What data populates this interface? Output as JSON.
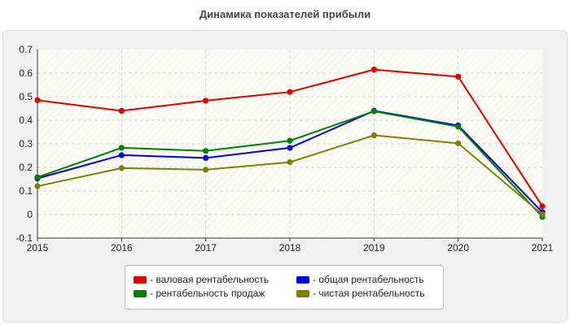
{
  "chart_data": {
    "type": "line",
    "title": "Динамика показателей прибыли",
    "x": [
      "2015",
      "2016",
      "2017",
      "2018",
      "2019",
      "2020",
      "2021"
    ],
    "ylim": [
      -0.1,
      0.7
    ],
    "yticks": [
      "-0.1",
      "0",
      "0.1",
      "0.2",
      "0.3",
      "0.4",
      "0.5",
      "0.6",
      "0.7"
    ],
    "grid": true,
    "legend_position": "bottom",
    "series": [
      {
        "name": "- валовая рентабельность",
        "color": "#e00000",
        "values": [
          0.485,
          0.44,
          0.483,
          0.52,
          0.615,
          0.585,
          0.035
        ]
      },
      {
        "name": "- общая рентабельность",
        "color": "#0000e0",
        "values": [
          0.153,
          0.252,
          0.24,
          0.283,
          0.44,
          0.378,
          0.01
        ]
      },
      {
        "name": "- рентабельность продаж",
        "color": "#008000",
        "values": [
          0.158,
          0.283,
          0.27,
          0.313,
          0.438,
          0.373,
          -0.01
        ]
      },
      {
        "name": "- чистая рентабельность",
        "color": "#808000",
        "values": [
          0.12,
          0.197,
          0.19,
          0.222,
          0.336,
          0.302,
          0.0
        ]
      }
    ]
  }
}
